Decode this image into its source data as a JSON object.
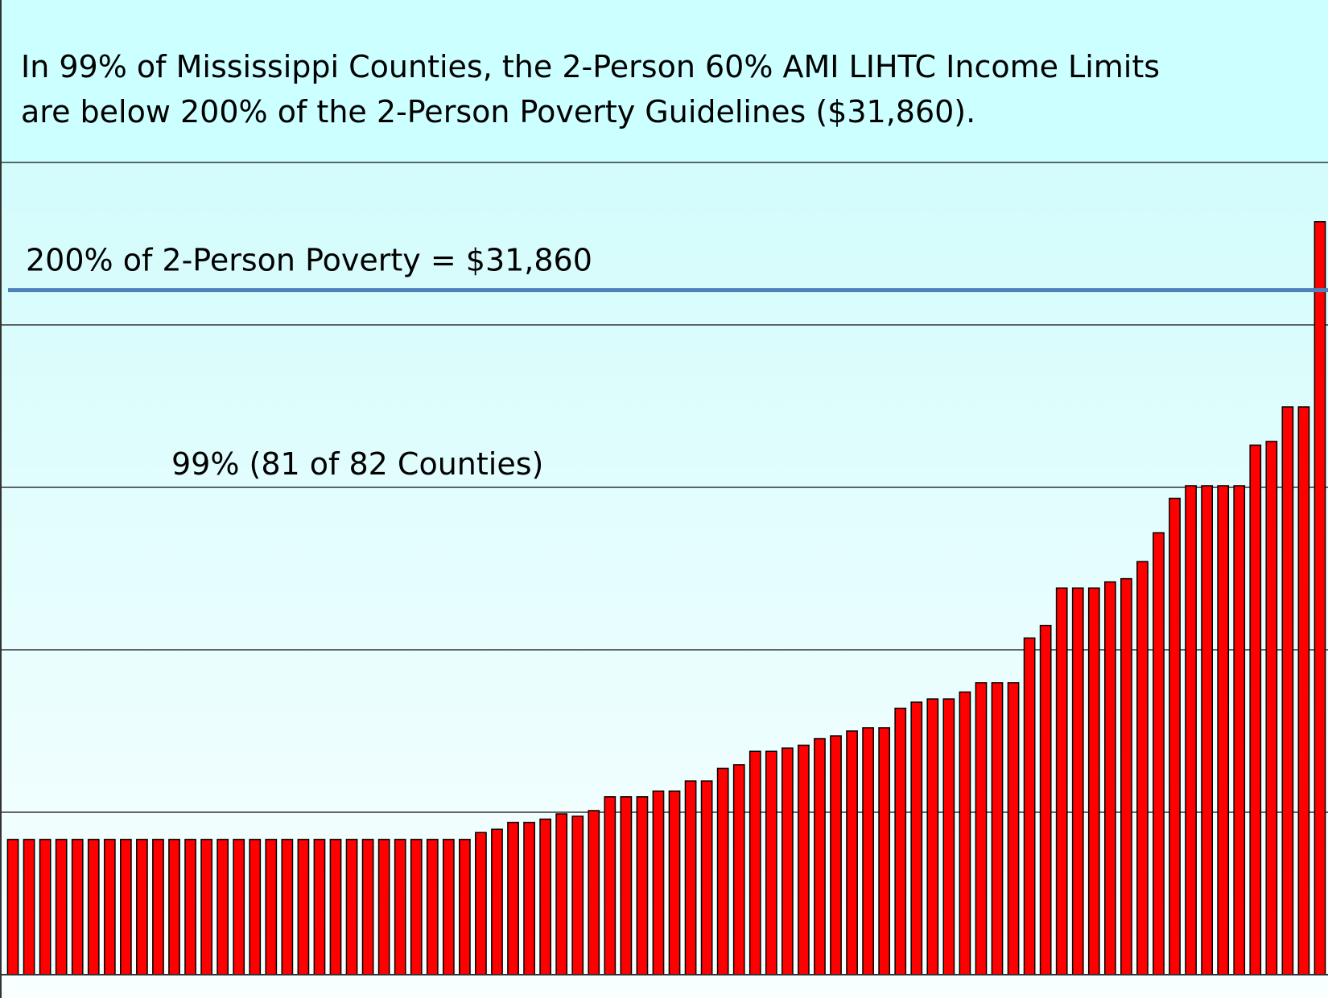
{
  "chart_data": {
    "type": "bar",
    "title_lines": [
      "In 99% of Mississippi Counties, the 2-Person 60% AMI LIHTC Income Limits",
      "are below 200% of the 2-Person Poverty Guidelines ($31,860)."
    ],
    "values": [
      18330,
      18330,
      18330,
      18330,
      18330,
      18330,
      18330,
      18330,
      18330,
      18330,
      18330,
      18330,
      18330,
      18330,
      18330,
      18330,
      18330,
      18330,
      18330,
      18330,
      18330,
      18330,
      18330,
      18330,
      18330,
      18330,
      18330,
      18330,
      18330,
      18500,
      18580,
      18750,
      18750,
      18830,
      18960,
      18900,
      19040,
      19380,
      19380,
      19380,
      19520,
      19520,
      19770,
      19770,
      20080,
      20170,
      20500,
      20500,
      20580,
      20650,
      20810,
      20880,
      21000,
      21080,
      21080,
      21560,
      21710,
      21790,
      21790,
      21960,
      22190,
      22190,
      22190,
      23290,
      23600,
      24520,
      24520,
      24520,
      24670,
      24750,
      25170,
      25880,
      26730,
      27040,
      27040,
      27040,
      27040,
      28040,
      28130,
      28980,
      28980,
      33540
    ],
    "color": "#ff0000",
    "ylim": [
      15000,
      35000
    ],
    "yticks": [
      15000,
      19000,
      23000,
      27000,
      31000,
      35000
    ],
    "grid": true,
    "reference_line": {
      "value": 31860,
      "label": "200% of 2-Person Poverty = $31,860",
      "color": "#4f81bd"
    },
    "annotation": "99% (81 of 82 Counties)"
  }
}
